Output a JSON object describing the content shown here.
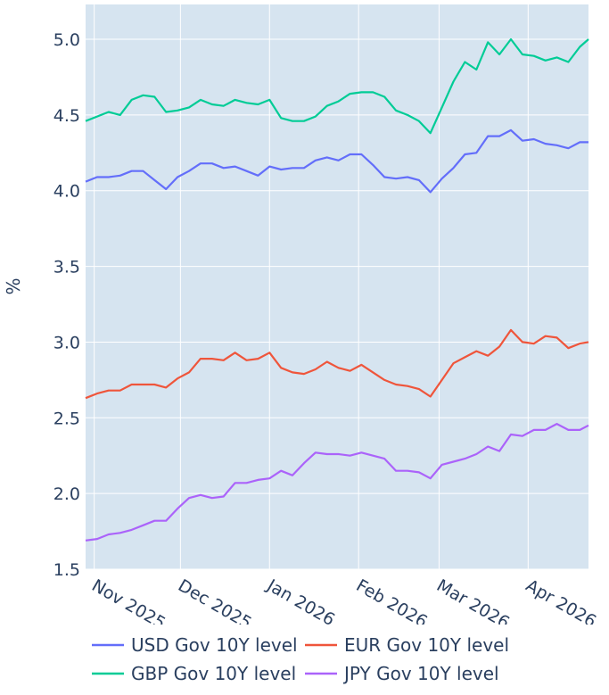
{
  "chart_data": {
    "type": "line",
    "title": "",
    "xlabel": "",
    "ylabel": "%",
    "ylim": [
      1.5,
      5.23
    ],
    "xlim": [
      "2025-10-29",
      "2026-04-22"
    ],
    "yticks": [
      1.5,
      2.0,
      2.5,
      3.0,
      3.5,
      4.0,
      4.5,
      5.0
    ],
    "ytick_labels": [
      "1.5",
      "2.0",
      "2.5",
      "3.0",
      "3.5",
      "4.0",
      "4.5",
      "5.0"
    ],
    "xticks": [
      {
        "date": "2025-11-01",
        "label": "Nov 2025"
      },
      {
        "date": "2025-12-01",
        "label": "Dec 2025"
      },
      {
        "date": "2026-01-01",
        "label": "Jan 2026"
      },
      {
        "date": "2026-02-01",
        "label": "Feb 2026"
      },
      {
        "date": "2026-03-01",
        "label": "Mar 2026"
      },
      {
        "date": "2026-04-01",
        "label": "Apr 2026"
      }
    ],
    "grid": true,
    "legend_placement": "bottom",
    "x": [
      "2025-10-29",
      "2025-11-02",
      "2025-11-06",
      "2025-11-10",
      "2025-11-14",
      "2025-11-18",
      "2025-11-22",
      "2025-11-26",
      "2025-11-30",
      "2025-12-04",
      "2025-12-08",
      "2025-12-12",
      "2025-12-16",
      "2025-12-20",
      "2025-12-24",
      "2025-12-28",
      "2026-01-01",
      "2026-01-05",
      "2026-01-09",
      "2026-01-13",
      "2026-01-17",
      "2026-01-21",
      "2026-01-25",
      "2026-01-29",
      "2026-02-02",
      "2026-02-06",
      "2026-02-10",
      "2026-02-14",
      "2026-02-18",
      "2026-02-22",
      "2026-02-26",
      "2026-03-02",
      "2026-03-06",
      "2026-03-10",
      "2026-03-14",
      "2026-03-18",
      "2026-03-22",
      "2026-03-26",
      "2026-03-30",
      "2026-04-03",
      "2026-04-07",
      "2026-04-11",
      "2026-04-15",
      "2026-04-19",
      "2026-04-22"
    ],
    "series": [
      {
        "name": "USD Gov 10Y level",
        "color": "#636efa",
        "values": [
          4.06,
          4.09,
          4.09,
          4.1,
          4.13,
          4.13,
          4.07,
          4.01,
          4.09,
          4.13,
          4.18,
          4.18,
          4.15,
          4.16,
          4.13,
          4.1,
          4.16,
          4.14,
          4.15,
          4.15,
          4.2,
          4.22,
          4.2,
          4.24,
          4.24,
          4.17,
          4.09,
          4.08,
          4.09,
          4.07,
          3.99,
          4.08,
          4.15,
          4.24,
          4.25,
          4.36,
          4.36,
          4.4,
          4.33,
          4.34,
          4.31,
          4.3,
          4.28,
          4.32,
          4.32
        ]
      },
      {
        "name": "EUR Gov 10Y level",
        "color": "#ef553b",
        "values": [
          2.63,
          2.66,
          2.68,
          2.68,
          2.72,
          2.72,
          2.72,
          2.7,
          2.76,
          2.8,
          2.89,
          2.89,
          2.88,
          2.93,
          2.88,
          2.89,
          2.93,
          2.83,
          2.8,
          2.79,
          2.82,
          2.87,
          2.83,
          2.81,
          2.85,
          2.8,
          2.75,
          2.72,
          2.71,
          2.69,
          2.64,
          2.75,
          2.86,
          2.9,
          2.94,
          2.91,
          2.97,
          3.08,
          3.0,
          2.99,
          3.04,
          3.03,
          2.96,
          2.99,
          3.0
        ]
      },
      {
        "name": "GBP Gov 10Y level",
        "color": "#00cc96",
        "values": [
          4.46,
          4.49,
          4.52,
          4.5,
          4.6,
          4.63,
          4.62,
          4.52,
          4.53,
          4.55,
          4.6,
          4.57,
          4.56,
          4.6,
          4.58,
          4.57,
          4.6,
          4.48,
          4.46,
          4.46,
          4.49,
          4.56,
          4.59,
          4.64,
          4.65,
          4.65,
          4.62,
          4.53,
          4.5,
          4.46,
          4.38,
          4.55,
          4.72,
          4.85,
          4.8,
          4.98,
          4.9,
          5.0,
          4.9,
          4.89,
          4.86,
          4.88,
          4.85,
          4.95,
          5.0
        ]
      },
      {
        "name": "JPY Gov 10Y level",
        "color": "#ab63fa",
        "values": [
          1.69,
          1.7,
          1.73,
          1.74,
          1.76,
          1.79,
          1.82,
          1.82,
          1.9,
          1.97,
          1.99,
          1.97,
          1.98,
          2.07,
          2.07,
          2.09,
          2.1,
          2.15,
          2.12,
          2.2,
          2.27,
          2.26,
          2.26,
          2.25,
          2.27,
          2.25,
          2.23,
          2.15,
          2.15,
          2.14,
          2.1,
          2.19,
          2.21,
          2.23,
          2.26,
          2.31,
          2.28,
          2.39,
          2.38,
          2.42,
          2.42,
          2.46,
          2.42,
          2.42,
          2.45
        ]
      }
    ],
    "plot_bg": "#d6e4f0"
  }
}
